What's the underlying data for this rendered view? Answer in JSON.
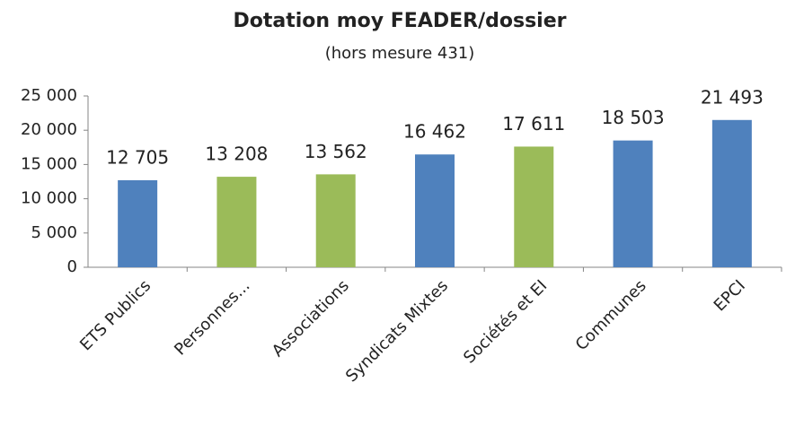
{
  "chart_data": {
    "type": "bar",
    "title": "Dotation moy FEADER/dossier",
    "subtitle": "(hors mesure 431)",
    "categories": [
      "ETS Publics",
      "Personnes...",
      "Associations",
      "Syndicats Mixtes",
      "Sociétés et EI",
      "Communes",
      "EPCI"
    ],
    "values": [
      12705,
      13208,
      13562,
      16462,
      17611,
      18503,
      21493
    ],
    "value_labels": [
      "12 705",
      "13 208",
      "13 562",
      "16 462",
      "17 611",
      "18 503",
      "21 493"
    ],
    "colors": [
      "#4f81bd",
      "#9bbb59",
      "#9bbb59",
      "#4f81bd",
      "#9bbb59",
      "#4f81bd",
      "#4f81bd"
    ],
    "ylim": [
      0,
      25000
    ],
    "yticks": [
      0,
      {
        "value": 5000,
        "label": "5 000"
      },
      {
        "value": 10000,
        "label": "10 000"
      },
      {
        "value": 15000,
        "label": "15 000"
      },
      {
        "value": 20000,
        "label": "20 000"
      },
      {
        "value": 25000,
        "label": "25 000"
      }
    ],
    "grid": false
  }
}
